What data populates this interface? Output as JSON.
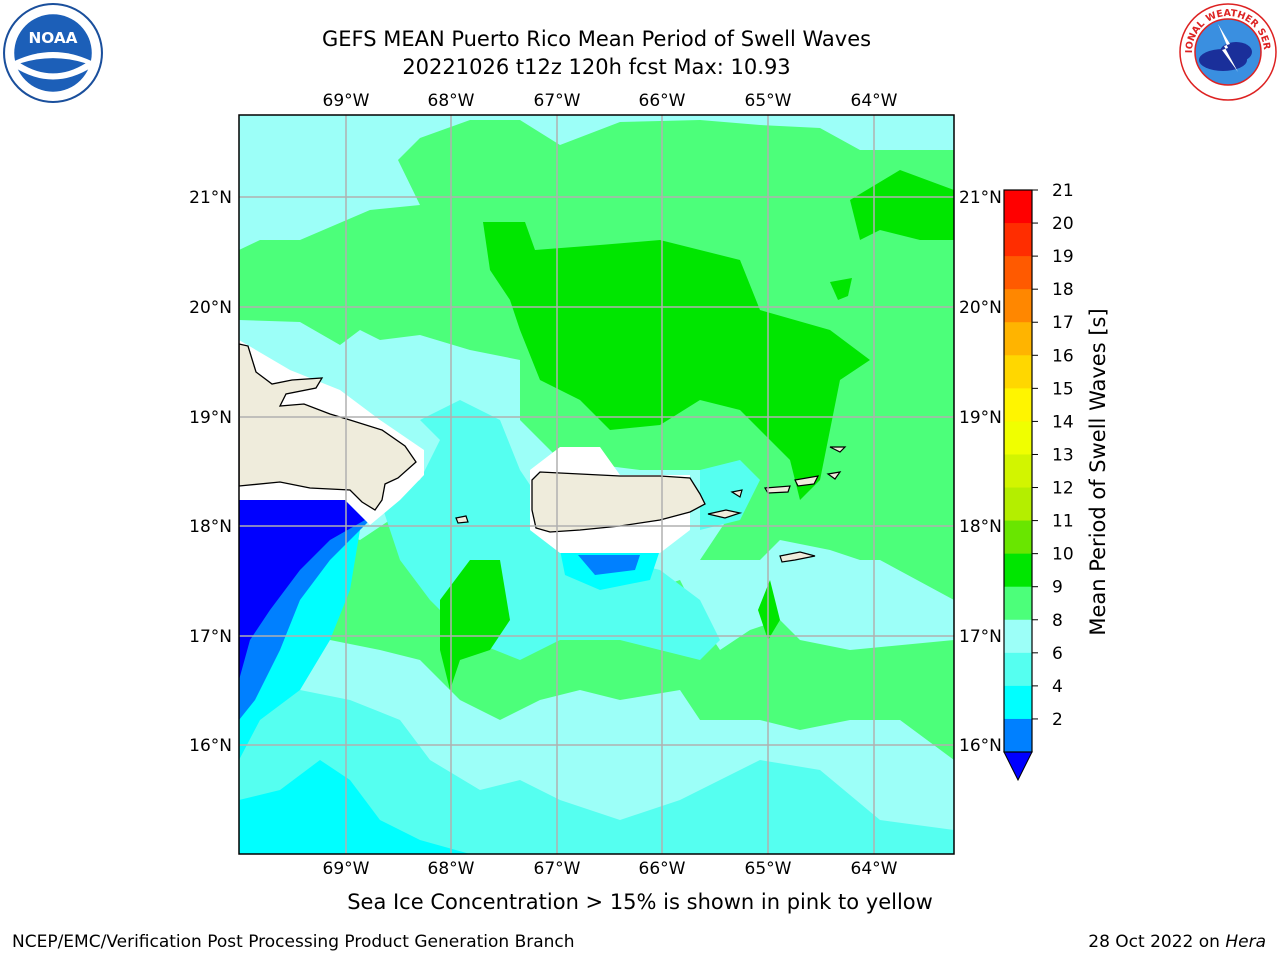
{
  "title": {
    "line1": "GEFS MEAN Puerto Rico Mean Period of Swell Waves",
    "line2": "20221026 t12z 120h fcst   Max: 10.93"
  },
  "map": {
    "projection": "lat-lon",
    "lon_range": [
      -69.9,
      -63.25
    ],
    "lat_range": [
      15.0,
      21.75
    ],
    "lon_ticks": [
      {
        "value": -69,
        "label": "69°W"
      },
      {
        "value": -68,
        "label": "68°W"
      },
      {
        "value": -67,
        "label": "67°W"
      },
      {
        "value": -66,
        "label": "66°W"
      },
      {
        "value": -65,
        "label": "65°W"
      },
      {
        "value": -64,
        "label": "64°W"
      }
    ],
    "lat_ticks": [
      {
        "value": 21,
        "label": "21°N"
      },
      {
        "value": 20,
        "label": "20°N"
      },
      {
        "value": 19,
        "label": "19°N"
      },
      {
        "value": 18,
        "label": "18°N"
      },
      {
        "value": 17,
        "label": "17°N"
      },
      {
        "value": 16,
        "label": "16°N"
      }
    ],
    "grid": true,
    "land_color": "#efecdc",
    "ocean_base_color": "#4cff7a"
  },
  "colorbar": {
    "label": "Mean Period of Swell Waves [s]",
    "ticks": [
      "21",
      "20",
      "19",
      "18",
      "17",
      "16",
      "15",
      "14",
      "13",
      "12",
      "11",
      "10",
      "9",
      "8",
      "6",
      "4",
      "2"
    ],
    "colors_top_to_bottom": [
      "#ff0000",
      "#ff2d00",
      "#ff5a00",
      "#ff8700",
      "#ffb400",
      "#ffd700",
      "#fff500",
      "#f0ff00",
      "#d2f500",
      "#b4ee00",
      "#69e600",
      "#00e600",
      "#4cff7a",
      "#9cfff8",
      "#55fff0",
      "#00ffff",
      "#0080ff"
    ],
    "extend_color": "#0000ff"
  },
  "caption": "Sea Ice Concentration > 15% is shown in pink to yellow",
  "footer": {
    "left": "NCEP/EMC/Verification Post Processing Product Generation Branch",
    "right_prefix": "28 Oct 2022 on ",
    "right_machine": "Hera"
  },
  "logos": {
    "noaa_text": "NOAA",
    "nws_text": "NATIONAL WEATHER SERVICE"
  }
}
